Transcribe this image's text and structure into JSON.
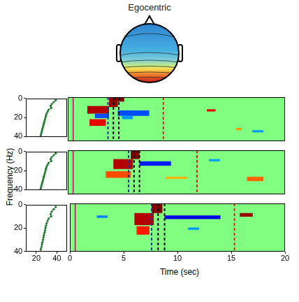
{
  "title": "Egocentric",
  "xlabel": "Time (sec)",
  "ylabel": "Frequency (Hz)",
  "chart_data": [
    {
      "type": "line",
      "color": "#1a7a2a",
      "marker": "circle",
      "xlim": [
        10,
        50
      ],
      "ylim": [
        0,
        40
      ],
      "yticks": [
        0,
        20,
        40
      ],
      "tick_labels": "y",
      "x": [
        39,
        37,
        35,
        34,
        34.5,
        32,
        31,
        30,
        29.5,
        29,
        28.5,
        28,
        27.5,
        27,
        26.5,
        26,
        25.5,
        25,
        24.5,
        24
      ],
      "y": [
        2,
        4,
        6,
        8,
        10,
        12,
        14,
        16,
        18,
        20,
        22,
        24,
        26,
        28,
        30,
        32,
        34,
        36,
        38,
        40
      ]
    },
    {
      "type": "heatmap",
      "xlim": [
        0,
        20
      ],
      "ylim": [
        0,
        40
      ],
      "clim": [
        -1,
        1
      ],
      "tick_labels": false,
      "cells": [
        {
          "t": [
            1.8,
            3.8
          ],
          "f": [
            8,
            15
          ],
          "value": 0.9
        },
        {
          "t": [
            2.0,
            3.5
          ],
          "f": [
            20,
            26
          ],
          "value": 0.8
        },
        {
          "t": [
            2.5,
            3.8
          ],
          "f": [
            15,
            19
          ],
          "value": -0.6
        },
        {
          "t": [
            3.8,
            4.6
          ],
          "f": [
            0,
            9
          ],
          "value": 0.95
        },
        {
          "t": [
            4.2,
            5.2
          ],
          "f": [
            0,
            4
          ],
          "value": 1
        },
        {
          "t": [
            4.6,
            7.5
          ],
          "f": [
            12,
            17
          ],
          "value": -0.6
        },
        {
          "t": [
            5,
            6
          ],
          "f": [
            17,
            20
          ],
          "value": -0.45
        },
        {
          "t": [
            12.8,
            13.6
          ],
          "f": [
            11,
            13
          ],
          "value": 0.8
        },
        {
          "t": [
            15.5,
            16
          ],
          "f": [
            28,
            30
          ],
          "value": 0.45
        },
        {
          "t": [
            17,
            18
          ],
          "f": [
            30,
            32
          ],
          "value": -0.45
        }
      ],
      "series": [
        {
          "type": "vline",
          "x": 0.5,
          "color": "#e0208a",
          "line_style": "solid"
        },
        {
          "type": "vline",
          "x": 3.7,
          "color": "#1f2fa0",
          "line_style": "dashed"
        },
        {
          "type": "vline",
          "x": 4.2,
          "color": "#000000",
          "line_style": "dashed"
        },
        {
          "type": "vline",
          "x": 4.7,
          "color": "#000000",
          "line_style": "dashed"
        },
        {
          "type": "vline",
          "x": 8.8,
          "color": "#e02020",
          "line_style": "dashed"
        }
      ]
    },
    {
      "type": "line",
      "color": "#1a7a2a",
      "marker": "circle",
      "xlim": [
        10,
        50
      ],
      "ylim": [
        0,
        40
      ],
      "yticks": [
        0,
        20,
        40
      ],
      "tick_labels": "y",
      "x": [
        39,
        37,
        35,
        34,
        34.5,
        32,
        31,
        30,
        29.5,
        29,
        28.5,
        28,
        27.5,
        27,
        26.5,
        26,
        25.5,
        25,
        24.5,
        24
      ],
      "y": [
        2,
        4,
        6,
        8,
        10,
        12,
        14,
        16,
        18,
        20,
        22,
        24,
        26,
        28,
        30,
        32,
        34,
        36,
        38,
        40
      ]
    },
    {
      "type": "heatmap",
      "xlim": [
        0,
        20
      ],
      "ylim": [
        0,
        40
      ],
      "clim": [
        -1,
        1
      ],
      "tick_labels": false,
      "cells": [
        {
          "t": [
            4.2,
            6
          ],
          "f": [
            8,
            17
          ],
          "value": 0.9
        },
        {
          "t": [
            3.5,
            5.8
          ],
          "f": [
            19,
            25
          ],
          "value": 0.6
        },
        {
          "t": [
            5.8,
            6.6
          ],
          "f": [
            0,
            8
          ],
          "value": 1
        },
        {
          "t": [
            6.6,
            9.5
          ],
          "f": [
            10,
            14
          ],
          "value": -0.7
        },
        {
          "t": [
            9,
            11
          ],
          "f": [
            24,
            26
          ],
          "value": 0.4
        },
        {
          "t": [
            16.5,
            18
          ],
          "f": [
            24,
            28
          ],
          "value": 0.55
        },
        {
          "t": [
            13,
            14
          ],
          "f": [
            8,
            10
          ],
          "value": -0.45
        }
      ],
      "series": [
        {
          "type": "vline",
          "x": 0.5,
          "color": "#e0208a",
          "line_style": "solid"
        },
        {
          "type": "vline",
          "x": 5.6,
          "color": "#1f2fa0",
          "line_style": "dashed"
        },
        {
          "type": "vline",
          "x": 6.1,
          "color": "#000000",
          "line_style": "dashed"
        },
        {
          "type": "vline",
          "x": 6.6,
          "color": "#000000",
          "line_style": "dashed"
        },
        {
          "type": "vline",
          "x": 11.9,
          "color": "#e02020",
          "line_style": "dashed"
        }
      ]
    },
    {
      "type": "line",
      "color": "#1a7a2a",
      "marker": "circle",
      "xlim": [
        10,
        50
      ],
      "ylim": [
        0,
        40
      ],
      "xticks": [
        20,
        40
      ],
      "yticks": [
        0,
        20,
        40
      ],
      "tick_labels": true,
      "x": [
        39,
        37,
        35,
        34,
        34.5,
        32,
        31,
        30,
        29.5,
        29,
        28.5,
        28,
        27.5,
        27,
        26.5,
        26,
        25.5,
        25,
        24.5,
        24
      ],
      "y": [
        2,
        4,
        6,
        8,
        10,
        12,
        14,
        16,
        18,
        20,
        22,
        24,
        26,
        28,
        30,
        32,
        34,
        36,
        38,
        40
      ]
    },
    {
      "type": "heatmap",
      "xlim": [
        0,
        20
      ],
      "ylim": [
        0,
        40
      ],
      "xticks": [
        0,
        5,
        10,
        15,
        20
      ],
      "clim": [
        -1,
        1
      ],
      "tick_labels": "x",
      "cells": [
        {
          "t": [
            6,
            7.8
          ],
          "f": [
            8,
            18
          ],
          "value": 0.9
        },
        {
          "t": [
            6.2,
            7.4
          ],
          "f": [
            19,
            26
          ],
          "value": 0.7
        },
        {
          "t": [
            7.6,
            8.6
          ],
          "f": [
            0,
            8
          ],
          "value": 1
        },
        {
          "t": [
            8.8,
            14
          ],
          "f": [
            10,
            13
          ],
          "value": -0.8
        },
        {
          "t": [
            15.8,
            17
          ],
          "f": [
            8,
            11
          ],
          "value": 0.95
        },
        {
          "t": [
            2.5,
            3.5
          ],
          "f": [
            10,
            12
          ],
          "value": -0.5
        },
        {
          "t": [
            11,
            12
          ],
          "f": [
            20,
            22
          ],
          "value": -0.45
        }
      ],
      "series": [
        {
          "type": "vline",
          "x": 0.5,
          "color": "#e0208a",
          "line_style": "solid"
        },
        {
          "type": "vline",
          "x": 7.6,
          "color": "#1f2fa0",
          "line_style": "dashed"
        },
        {
          "type": "vline",
          "x": 8.2,
          "color": "#000000",
          "line_style": "dashed"
        },
        {
          "type": "vline",
          "x": 8.8,
          "color": "#000000",
          "line_style": "dashed"
        },
        {
          "type": "vline",
          "x": 15.3,
          "color": "#e02020",
          "line_style": "dashed"
        }
      ]
    }
  ]
}
